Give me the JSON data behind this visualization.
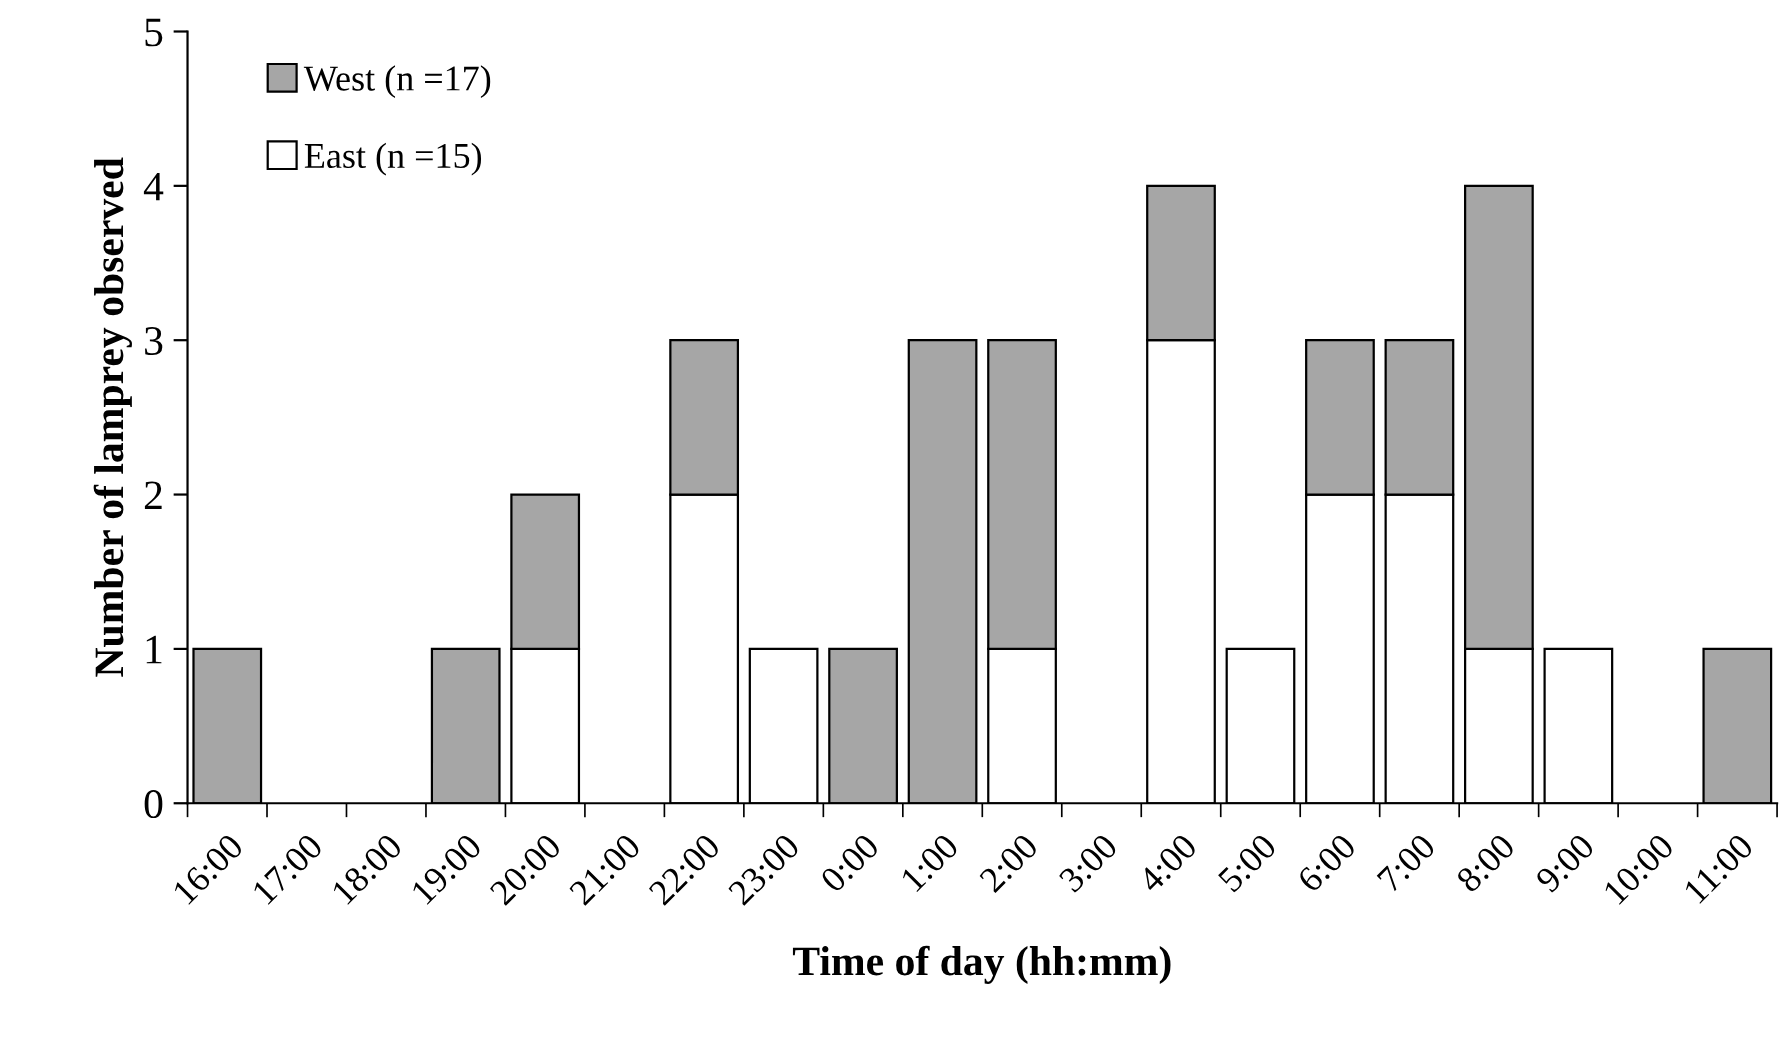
{
  "chart_data": {
    "type": "bar",
    "stacked": true,
    "xlabel": "Time of day (hh:mm)",
    "ylabel": "Number of lamprey observed",
    "categories": [
      "16:00",
      "17:00",
      "18:00",
      "19:00",
      "20:00",
      "21:00",
      "22:00",
      "23:00",
      "0:00",
      "1:00",
      "2:00",
      "3:00",
      "4:00",
      "5:00",
      "6:00",
      "7:00",
      "8:00",
      "9:00",
      "10:00",
      "11:00"
    ],
    "series": [
      {
        "name": "East (n =15)",
        "color": "#ffffff",
        "values": [
          0,
          0,
          0,
          0,
          1,
          0,
          2,
          1,
          0,
          0,
          1,
          0,
          3,
          1,
          2,
          2,
          1,
          1,
          0,
          0
        ]
      },
      {
        "name": "West (n =17)",
        "color": "#a6a6a6",
        "values": [
          1,
          0,
          0,
          1,
          1,
          0,
          1,
          0,
          1,
          3,
          2,
          0,
          1,
          0,
          1,
          1,
          3,
          0,
          0,
          1
        ]
      }
    ],
    "ylim": [
      0,
      5
    ],
    "yticks": [
      0,
      1,
      2,
      3,
      4,
      5
    ],
    "grid": false,
    "legend": "top left"
  }
}
